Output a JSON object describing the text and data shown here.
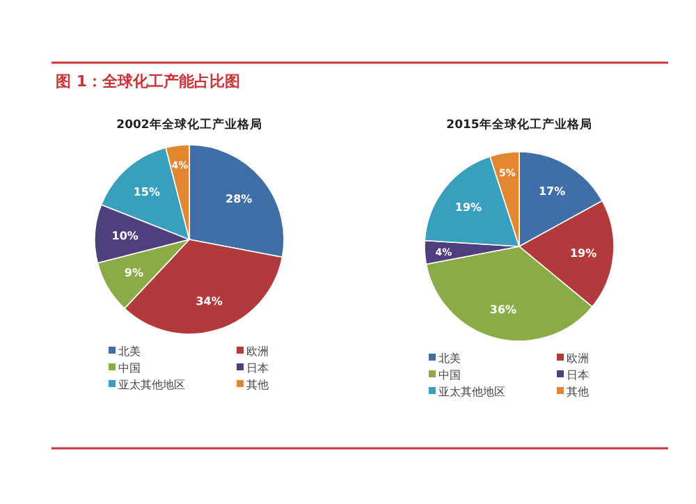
{
  "chart_data": [
    {
      "type": "other",
      "title": "图 1：全球化工产能占比图"
    },
    {
      "type": "pie",
      "title": "2002年全球化工产业格局",
      "categories": [
        "北美",
        "欧洲",
        "中国",
        "日本",
        "亚太其他地区",
        "其他"
      ],
      "values": [
        28,
        34,
        9,
        10,
        15,
        4
      ],
      "value_labels": [
        "28%",
        "34%",
        "9%",
        "10%",
        "15%",
        "4%"
      ],
      "colors": [
        "#3f6fa6",
        "#b23a3c",
        "#8aab45",
        "#4f3f7c",
        "#38a0bd",
        "#e2872f"
      ],
      "legend": "bottom"
    },
    {
      "type": "pie",
      "title": "2015年全球化工产业格局",
      "categories": [
        "北美",
        "欧洲",
        "中国",
        "日本",
        "亚太其他地区",
        "其他"
      ],
      "values": [
        17,
        19,
        36,
        4,
        19,
        5
      ],
      "value_labels": [
        "17%",
        "19%",
        "36%",
        "4%",
        "19%",
        "5%"
      ],
      "colors": [
        "#3f6fa6",
        "#b23a3c",
        "#8aab45",
        "#4f3f7c",
        "#38a0bd",
        "#e2872f"
      ],
      "legend": "bottom"
    }
  ]
}
